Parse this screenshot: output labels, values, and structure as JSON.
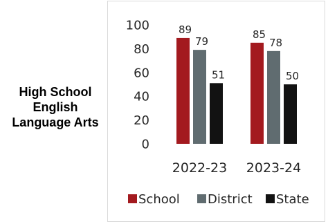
{
  "subject": {
    "lines": [
      "High School",
      "English",
      "Language Arts"
    ]
  },
  "chart_data": {
    "type": "bar",
    "categories": [
      "2022-23",
      "2023-24"
    ],
    "series": [
      {
        "name": "School",
        "values": [
          89,
          85
        ],
        "color": "#a31a1f"
      },
      {
        "name": "District",
        "values": [
          79,
          78
        ],
        "color": "#606c70"
      },
      {
        "name": "State",
        "values": [
          51,
          50
        ],
        "color": "#121212"
      }
    ],
    "ylim": [
      0,
      100
    ],
    "yticks": [
      "0",
      "20",
      "40",
      "60",
      "80",
      "100"
    ],
    "grid": false,
    "legend": "bottom",
    "data_labels": true
  }
}
